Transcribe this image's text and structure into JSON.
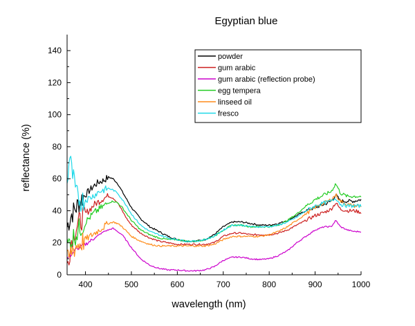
{
  "chart_data": {
    "type": "line",
    "title": "Egyptian blue",
    "xlabel": "wavelength (nm)",
    "ylabel": "reflectance (%)",
    "xlim": [
      360,
      1000
    ],
    "ylim": [
      0,
      150
    ],
    "xticks": [
      400,
      500,
      600,
      700,
      800,
      900,
      1000
    ],
    "yticks": [
      0,
      20,
      40,
      60,
      80,
      100,
      120,
      140
    ],
    "grid": false,
    "legend_position": "top-right",
    "series": [
      {
        "name": "powder",
        "color": "#000000",
        "x": [
          360,
          370,
          380,
          390,
          400,
          410,
          420,
          430,
          440,
          450,
          460,
          470,
          480,
          490,
          500,
          520,
          540,
          560,
          580,
          600,
          620,
          640,
          660,
          680,
          700,
          720,
          740,
          760,
          780,
          800,
          820,
          840,
          860,
          880,
          900,
          920,
          935,
          945,
          955,
          970,
          985,
          1000
        ],
        "y": [
          30,
          38,
          42,
          47,
          50,
          53,
          56,
          58,
          59,
          61,
          60,
          57,
          52,
          47,
          42,
          35,
          30,
          27,
          24,
          22,
          21,
          21,
          22,
          25,
          30,
          33,
          33,
          32,
          31,
          31,
          32,
          34,
          37,
          40,
          42,
          44,
          46,
          50,
          46,
          46,
          46,
          47
        ]
      },
      {
        "name": "gum arabic",
        "color": "#cc1f1f",
        "x": [
          360,
          370,
          380,
          390,
          400,
          410,
          420,
          430,
          440,
          450,
          460,
          470,
          480,
          490,
          500,
          520,
          540,
          560,
          580,
          600,
          620,
          640,
          660,
          680,
          700,
          720,
          740,
          760,
          780,
          800,
          820,
          840,
          860,
          880,
          900,
          920,
          935,
          945,
          955,
          970,
          985,
          1000
        ],
        "y": [
          5,
          22,
          30,
          34,
          38,
          41,
          44,
          46,
          48,
          49,
          48,
          45,
          40,
          35,
          31,
          26,
          23,
          21,
          20,
          19,
          19,
          19,
          19,
          20,
          24,
          26,
          26,
          25,
          25,
          25,
          26,
          28,
          31,
          34,
          37,
          39,
          41,
          45,
          41,
          40,
          40,
          39
        ]
      },
      {
        "name": "gum arabic (reflection probe)",
        "color": "#cc00cc",
        "x": [
          360,
          380,
          400,
          420,
          440,
          460,
          480,
          500,
          520,
          540,
          560,
          580,
          600,
          620,
          640,
          660,
          680,
          700,
          720,
          740,
          760,
          780,
          800,
          820,
          840,
          860,
          880,
          900,
          920,
          935,
          945,
          955,
          970,
          985,
          1000
        ],
        "y": [
          10,
          16,
          19,
          23,
          27,
          29,
          25,
          17,
          10,
          6,
          4,
          3,
          3,
          2.5,
          2.5,
          3,
          5,
          9,
          11,
          11,
          10,
          9.5,
          10,
          12,
          15,
          20,
          24,
          28,
          30,
          30,
          34,
          30,
          28,
          27,
          27
        ]
      },
      {
        "name": "egg tempera",
        "color": "#22cc22",
        "x": [
          360,
          370,
          380,
          390,
          400,
          410,
          420,
          430,
          440,
          450,
          460,
          470,
          480,
          490,
          500,
          520,
          540,
          560,
          580,
          600,
          620,
          640,
          660,
          680,
          700,
          720,
          740,
          760,
          780,
          800,
          820,
          840,
          860,
          880,
          900,
          920,
          935,
          945,
          955,
          970,
          985,
          1000
        ],
        "y": [
          18,
          22,
          26,
          30,
          33,
          36,
          39,
          41,
          43,
          45,
          46,
          45,
          42,
          38,
          34,
          28,
          25,
          23,
          22,
          22,
          21,
          21,
          22,
          24,
          28,
          31,
          31,
          30,
          30,
          30,
          31,
          34,
          38,
          43,
          47,
          50,
          52,
          57,
          51,
          49,
          49,
          49
        ]
      },
      {
        "name": "linseed oil",
        "color": "#ff8c1a",
        "x": [
          360,
          370,
          380,
          390,
          400,
          410,
          420,
          430,
          440,
          450,
          460,
          470,
          480,
          490,
          500,
          520,
          540,
          560,
          580,
          600,
          620,
          640,
          660,
          680,
          700,
          720,
          740,
          760,
          780,
          800,
          820,
          840,
          860,
          880,
          900,
          920,
          935,
          945,
          955,
          970,
          985,
          1000
        ],
        "y": [
          8,
          15,
          18,
          20,
          22,
          24,
          26,
          28,
          30,
          32,
          33,
          32,
          30,
          27,
          24,
          21,
          19,
          18,
          18,
          18,
          18,
          18,
          18,
          19,
          22,
          24,
          24,
          24,
          24,
          25,
          27,
          30,
          34,
          38,
          42,
          45,
          47,
          50,
          46,
          44,
          43,
          43
        ]
      },
      {
        "name": "fresco",
        "color": "#1ed8e8",
        "x": [
          360,
          365,
          370,
          375,
          380,
          390,
          400,
          410,
          420,
          430,
          440,
          450,
          460,
          470,
          480,
          490,
          500,
          520,
          540,
          560,
          580,
          600,
          620,
          640,
          660,
          680,
          700,
          720,
          740,
          760,
          780,
          800,
          820,
          840,
          860,
          880,
          900,
          920,
          935,
          945,
          955,
          970,
          985,
          1000
        ],
        "y": [
          55,
          75,
          65,
          58,
          50,
          46,
          47,
          48,
          50,
          52,
          53,
          54,
          53,
          51,
          47,
          43,
          38,
          31,
          27,
          25,
          23,
          22,
          21,
          21,
          22,
          24,
          28,
          31,
          31,
          30,
          30,
          30,
          31,
          33,
          36,
          40,
          43,
          45,
          46,
          48,
          44,
          43,
          43,
          43
        ]
      }
    ]
  }
}
